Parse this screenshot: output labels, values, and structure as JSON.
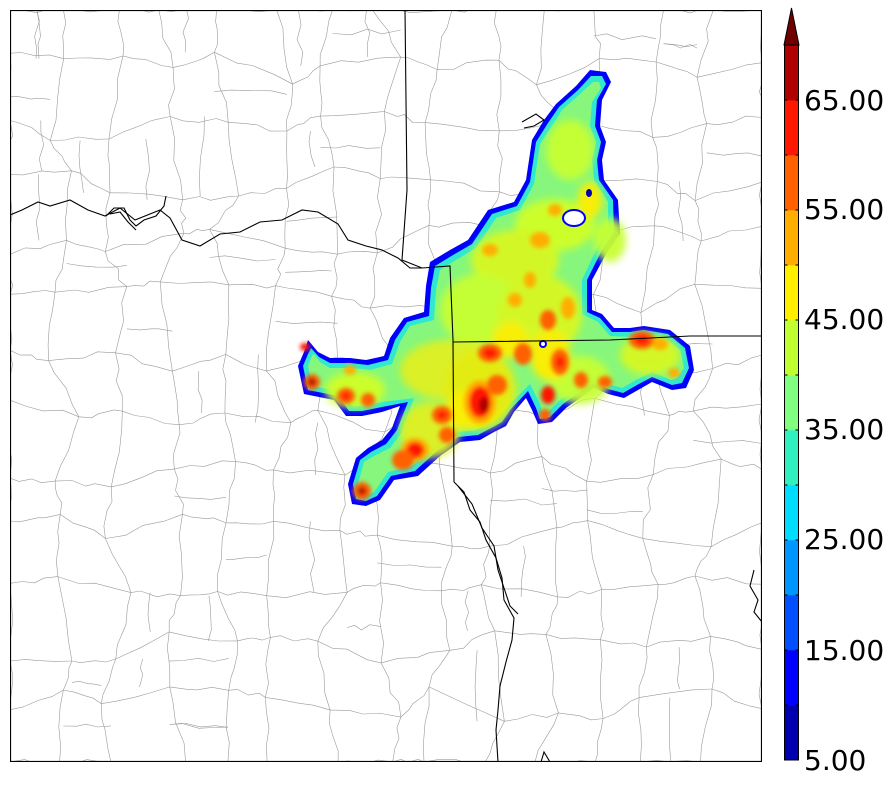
{
  "colorbar": {
    "tick_labels": [
      "5.00",
      "15.00",
      "25.00",
      "35.00",
      "45.00",
      "55.00",
      "65.00"
    ],
    "levels": [
      5,
      10,
      15,
      20,
      25,
      30,
      35,
      40,
      45,
      50,
      55,
      60,
      65,
      70
    ],
    "colors": [
      "#0000b0",
      "#0000ff",
      "#0050ff",
      "#0096ff",
      "#00dcff",
      "#30f0c0",
      "#80ff80",
      "#c0ff30",
      "#ffee00",
      "#ffae00",
      "#ff6000",
      "#ff1800",
      "#b00000",
      "#700000"
    ],
    "extend": "max"
  },
  "map": {
    "boundary_color": "#000000",
    "county_line_color": "#9a9a9a",
    "field_edge_color": "#0000ff"
  }
}
